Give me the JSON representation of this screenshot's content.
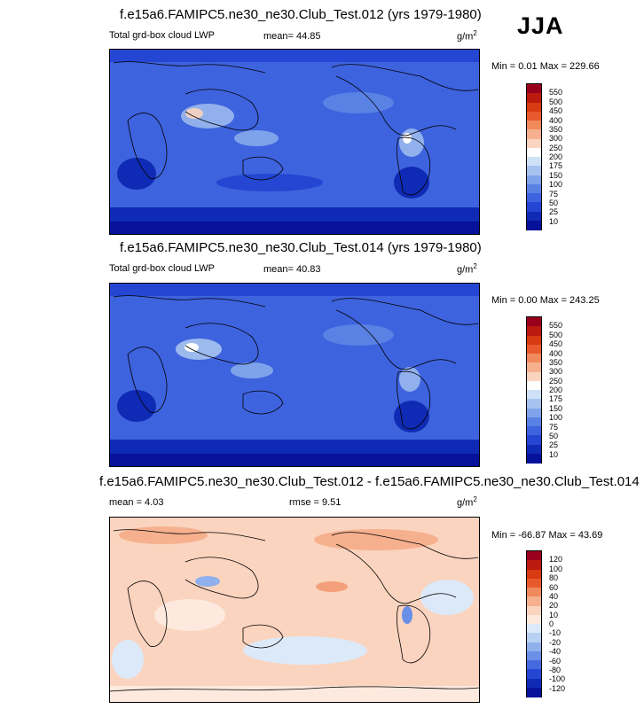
{
  "season": "JJA",
  "panels": [
    {
      "title": "f.e15a6.FAMIPC5.ne30_ne30.Club_Test.012 (yrs 1979-1980)",
      "left_label": "Total grd-box cloud LWP",
      "stat_label": "mean=  44.85",
      "stat2_label": "",
      "units_base": "g/m",
      "units_exp": "2",
      "minmax": "Min =   0.01 Max = 229.66",
      "colorbar": {
        "labels": [
          "550",
          "500",
          "450",
          "400",
          "350",
          "300",
          "250",
          "200",
          "175",
          "150",
          "100",
          "75",
          "50",
          "25",
          "10"
        ],
        "colors": [
          "#99001b",
          "#bb1a0f",
          "#d83a12",
          "#e85a2d",
          "#f08a5c",
          "#f6b08e",
          "#fbd4bf",
          "#ffffff",
          "#cfe1f6",
          "#a6c3ef",
          "#7fa3ea",
          "#5a81e4",
          "#3e63de",
          "#2446d2",
          "#0f2ab4",
          "#06129a"
        ]
      }
    },
    {
      "title": "f.e15a6.FAMIPC5.ne30_ne30.Club_Test.014 (yrs 1979-1980)",
      "left_label": "Total grd-box cloud LWP",
      "stat_label": "mean=  40.83",
      "stat2_label": "",
      "units_base": "g/m",
      "units_exp": "2",
      "minmax": "Min =   0.00 Max = 243.25",
      "colorbar": {
        "labels": [
          "550",
          "500",
          "450",
          "400",
          "350",
          "300",
          "250",
          "200",
          "175",
          "150",
          "100",
          "75",
          "50",
          "25",
          "10"
        ],
        "colors": [
          "#99001b",
          "#bb1a0f",
          "#d83a12",
          "#e85a2d",
          "#f08a5c",
          "#f6b08e",
          "#fbd4bf",
          "#ffffff",
          "#cfe1f6",
          "#a6c3ef",
          "#7fa3ea",
          "#5a81e4",
          "#3e63de",
          "#2446d2",
          "#0f2ab4",
          "#06129a"
        ]
      }
    },
    {
      "title": "f.e15a6.FAMIPC5.ne30_ne30.Club_Test.012 - f.e15a6.FAMIPC5.ne30_ne30.Club_Test.014",
      "left_label": "mean =   4.03",
      "stat_label": "",
      "stat2_label": "rmse =   9.51",
      "units_base": "g/m",
      "units_exp": "2",
      "minmax": "Min = -66.87 Max =  43.69",
      "colorbar": {
        "labels": [
          "120",
          "100",
          "80",
          "60",
          "40",
          "20",
          "10",
          "0",
          "-10",
          "-20",
          "-40",
          "-60",
          "-80",
          "-100",
          "-120"
        ],
        "colors": [
          "#99001b",
          "#bb1a0f",
          "#d83a12",
          "#e85a2d",
          "#f08a5c",
          "#f6b08e",
          "#fbd4bf",
          "#fde9de",
          "#dce9f8",
          "#b8d0f2",
          "#8fb0ec",
          "#6a8fe6",
          "#4569df",
          "#2446d2",
          "#0f2ab4",
          "#06129a"
        ]
      }
    }
  ]
}
